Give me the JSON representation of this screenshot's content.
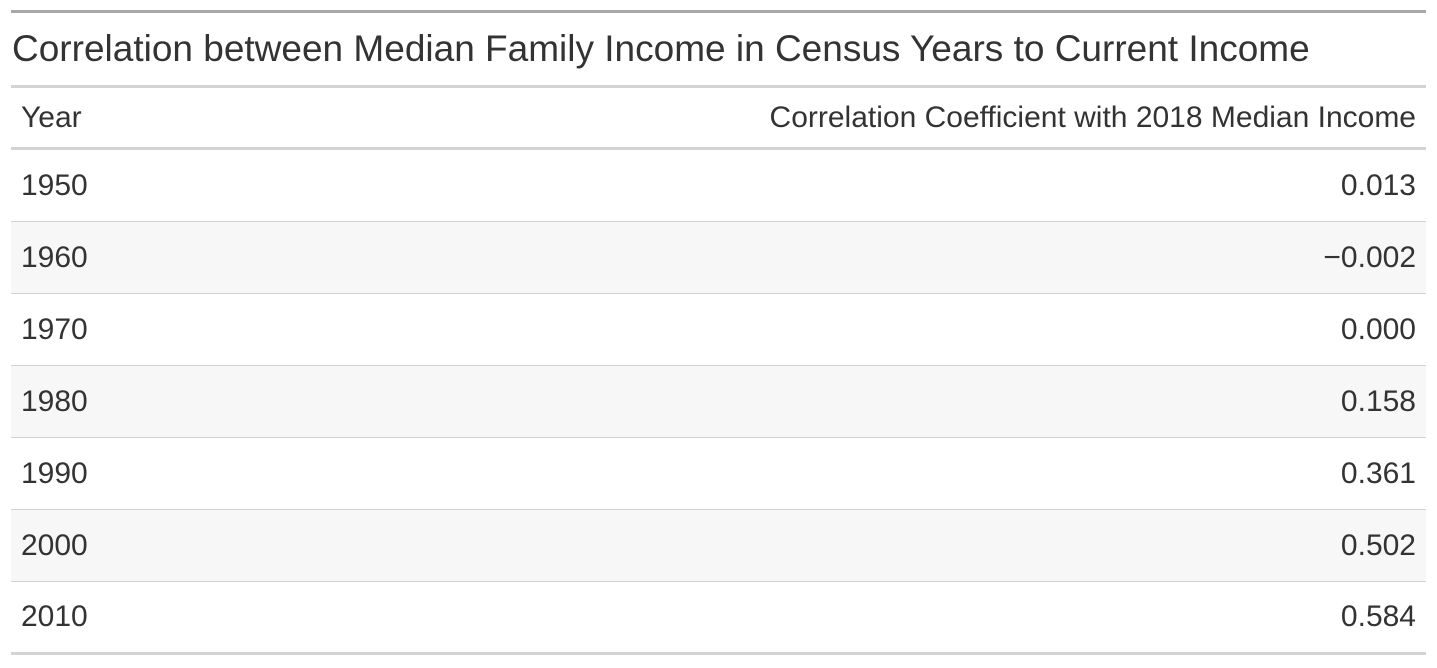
{
  "chart_data": {
    "type": "table",
    "title": "Correlation between Median Family Income in Census Years to Current Income",
    "columns": [
      "Year",
      "Correlation Coefficient with 2018 Median Income"
    ],
    "rows": [
      {
        "year": "1950",
        "value": "0.013"
      },
      {
        "year": "1960",
        "value": "−0.002"
      },
      {
        "year": "1970",
        "value": "0.000"
      },
      {
        "year": "1980",
        "value": "0.158"
      },
      {
        "year": "1990",
        "value": "0.361"
      },
      {
        "year": "2000",
        "value": "0.502"
      },
      {
        "year": "2010",
        "value": "0.584"
      }
    ],
    "colors": {
      "text": "#333333",
      "top_border": "#a8a8a8",
      "rule": "#d3d3d3",
      "stripe": "#f7f7f7"
    }
  }
}
